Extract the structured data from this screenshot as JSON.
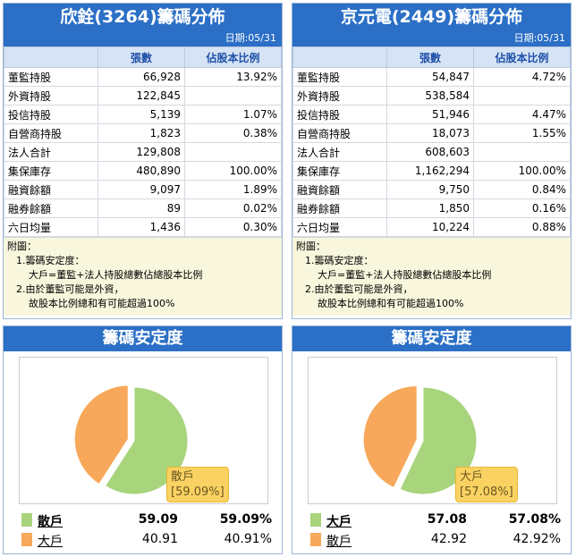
{
  "tables": [
    {
      "title": "欣銓(3264)籌碼分佈",
      "date": "日期:05/31",
      "headers": [
        "",
        "張數",
        "佔股本比例"
      ],
      "rows": [
        [
          "董監持股",
          "66,928",
          "13.92%"
        ],
        [
          "外資持股",
          "122,845",
          ""
        ],
        [
          "投信持股",
          "5,139",
          "1.07%"
        ],
        [
          "自營商持股",
          "1,823",
          "0.38%"
        ],
        [
          "法人合計",
          "129,808",
          ""
        ],
        [
          "集保庫存",
          "480,890",
          "100.00%"
        ],
        [
          "融資餘額",
          "9,097",
          "1.89%"
        ],
        [
          "融券餘額",
          "89",
          "0.02%"
        ],
        [
          "六日均量",
          "1,436",
          "0.30%"
        ]
      ],
      "notes": [
        "附圖：",
        "1.籌碼安定度：",
        "大戶=董監+法人持股總數佔總股本比例",
        "2.由於董監可能是外資，",
        "故股本比例總和有可能超過100%"
      ]
    },
    {
      "title": "京元電(2449)籌碼分佈",
      "date": "日期:05/31",
      "headers": [
        "",
        "張數",
        "佔股本比例"
      ],
      "rows": [
        [
          "董監持股",
          "54,847",
          "4.72%"
        ],
        [
          "外資持股",
          "538,584",
          ""
        ],
        [
          "投信持股",
          "51,946",
          "4.47%"
        ],
        [
          "自營商持股",
          "18,073",
          "1.55%"
        ],
        [
          "法人合計",
          "608,603",
          ""
        ],
        [
          "集保庫存",
          "1,162,294",
          "100.00%"
        ],
        [
          "融資餘額",
          "9,750",
          "0.84%"
        ],
        [
          "融券餘額",
          "1,850",
          "0.16%"
        ],
        [
          "六日均量",
          "10,224",
          "0.88%"
        ]
      ],
      "notes": [
        "附圖：",
        "1.籌碼安定度：",
        "大戶=董監+法人持股總數佔總股本比例",
        "2.由於董監可能是外資，",
        "故股本比例總和有可能超過100%"
      ]
    }
  ],
  "charts": [
    {
      "title": "籌碼安定度",
      "tooltip_name": "散戶",
      "tooltip_value": "[59.09%]",
      "legend": [
        {
          "name": "散戶",
          "value": "59.09",
          "pct": "59.09%",
          "color": "#a8d47c"
        },
        {
          "name": "大戶",
          "value": "40.91",
          "pct": "40.91%",
          "color": "#f7a85a"
        }
      ]
    },
    {
      "title": "籌碼安定度",
      "tooltip_name": "大戶",
      "tooltip_value": "[57.08%]",
      "legend": [
        {
          "name": "大戶",
          "value": "57.08",
          "pct": "57.08%",
          "color": "#a8d47c"
        },
        {
          "name": "散戶",
          "value": "42.92",
          "pct": "42.92%",
          "color": "#f7a85a"
        }
      ]
    }
  ],
  "chart_data": [
    {
      "type": "pie",
      "title": "籌碼安定度",
      "categories": [
        "散戶",
        "大戶"
      ],
      "values": [
        59.09,
        40.91
      ],
      "colors": [
        "#a8d47c",
        "#f7a85a"
      ]
    },
    {
      "type": "pie",
      "title": "籌碼安定度",
      "categories": [
        "大戶",
        "散戶"
      ],
      "values": [
        57.08,
        42.92
      ],
      "colors": [
        "#a8d47c",
        "#f7a85a"
      ]
    }
  ]
}
